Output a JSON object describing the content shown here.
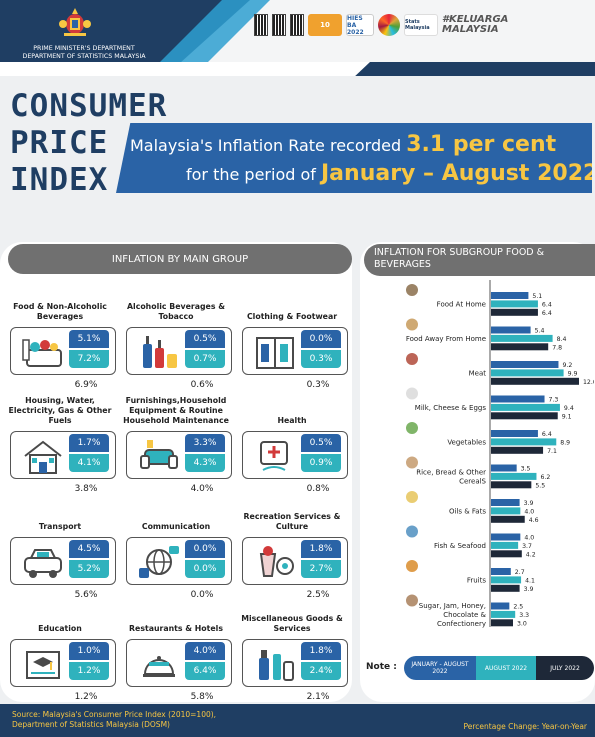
{
  "header": {
    "agency_line1": "PRIME MINISTER'S DEPARTMENT",
    "agency_line2": "DEPARTMENT OF STATISTICS MALAYSIA",
    "logos": [
      "HIES BA 2022",
      "Stats Malaysia",
      "#KELUARGA MALAYSIA"
    ]
  },
  "title": {
    "line1": "CONSUMER",
    "line2": "PRICE",
    "line3": "INDEX"
  },
  "headline": {
    "pre1": "Malaysia's Inflation Rate recorded",
    "hl1": "3.1 per cent",
    "pre2": "for the period of",
    "hl2": "January – August 2022"
  },
  "main_group": {
    "heading": "INFLATION BY MAIN GROUP",
    "items": [
      {
        "label": "Food & Non-Alcoholic Beverages",
        "jan_aug": "5.1%",
        "aug": "7.2%",
        "jul": "6.9%",
        "icon": "grocery-basket-icon"
      },
      {
        "label": "Alcoholic Beverages & Tobacco",
        "jan_aug": "0.5%",
        "aug": "0.7%",
        "jul": "0.6%",
        "icon": "bottles-icon"
      },
      {
        "label": "Clothing & Footwear",
        "jan_aug": "0.0%",
        "aug": "0.3%",
        "jul": "0.3%",
        "icon": "wardrobe-icon"
      },
      {
        "label": "Housing, Water, Electricity, Gas & Other Fuels",
        "jan_aug": "1.7%",
        "aug": "4.1%",
        "jul": "3.8%",
        "icon": "house-icon"
      },
      {
        "label": "Furnishings,Household Equipment & Routine Household Maintenance",
        "jan_aug": "3.3%",
        "aug": "4.3%",
        "jul": "4.0%",
        "icon": "sofa-icon"
      },
      {
        "label": "Health",
        "jan_aug": "0.5%",
        "aug": "0.9%",
        "jul": "0.8%",
        "icon": "health-icon"
      },
      {
        "label": "Transport",
        "jan_aug": "4.5%",
        "aug": "5.2%",
        "jul": "5.6%",
        "icon": "car-icon"
      },
      {
        "label": "Communication",
        "jan_aug": "0.0%",
        "aug": "0.0%",
        "jul": "0.0%",
        "icon": "communication-icon"
      },
      {
        "label": "Recreation Services & Culture",
        "jan_aug": "1.8%",
        "aug": "2.7%",
        "jul": "2.5%",
        "icon": "recreation-icon"
      },
      {
        "label": "Education",
        "jan_aug": "1.0%",
        "aug": "1.2%",
        "jul": "1.2%",
        "icon": "graduation-icon"
      },
      {
        "label": "Restaurants & Hotels",
        "jan_aug": "4.0%",
        "aug": "6.4%",
        "jul": "5.8%",
        "icon": "restaurant-icon"
      },
      {
        "label": "Miscellaneous Goods & Services",
        "jan_aug": "1.8%",
        "aug": "2.4%",
        "jul": "2.1%",
        "icon": "toiletries-icon"
      }
    ]
  },
  "subgroup_heading": "INFLATION FOR SUBGROUP FOOD & BEVERAGES",
  "chart_data": {
    "type": "bar",
    "orientation": "horizontal",
    "title": "INFLATION FOR SUBGROUP FOOD & BEVERAGES",
    "categories": [
      "Food At Home",
      "Food Away From Home",
      "Meat",
      "Milk, Cheese & Eggs",
      "Vegetables",
      "Rice, Bread & Other CerealS",
      "Oils & Fats",
      "Fish & Seafood",
      "Fruits",
      "Sugar, Jam, Honey, Chocolate & Confectionery"
    ],
    "series": [
      {
        "name": "JANUARY - AUGUST 2022",
        "color": "#2a63a6",
        "values": [
          5.1,
          5.4,
          9.2,
          7.3,
          6.4,
          3.5,
          3.9,
          4.0,
          2.7,
          2.5
        ]
      },
      {
        "name": "AUGUST 2022",
        "color": "#2fb2bd",
        "values": [
          6.4,
          8.4,
          9.9,
          9.4,
          8.9,
          6.2,
          4.0,
          3.7,
          4.1,
          3.3
        ]
      },
      {
        "name": "JULY 2022",
        "color": "#1e2838",
        "values": [
          6.4,
          7.8,
          12.0,
          9.1,
          7.1,
          5.5,
          4.6,
          4.2,
          3.9,
          3.0
        ]
      }
    ],
    "xlim": [
      0,
      12
    ],
    "legend_position": "bottom"
  },
  "legend": {
    "label": "Note :",
    "a": "JANUARY - AUGUST 2022",
    "b": "AUGUST 2022",
    "c": "JULY 2022"
  },
  "footer": {
    "source1": "Source: Malaysia's Consumer Price Index (2010=100),",
    "source2": "Department of Statistics Malaysia (DOSM)",
    "note": "Percentage Change: Year-on-Year"
  }
}
